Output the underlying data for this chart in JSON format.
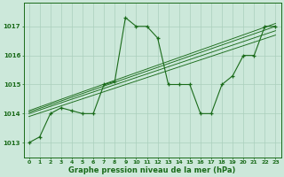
{
  "hours": [
    0,
    1,
    2,
    3,
    4,
    5,
    6,
    7,
    8,
    9,
    10,
    11,
    12,
    13,
    14,
    15,
    16,
    17,
    18,
    19,
    20,
    21,
    22,
    23
  ],
  "pressure": [
    1013.0,
    1013.2,
    1014.0,
    1014.2,
    1014.1,
    1014.0,
    1014.0,
    1015.0,
    1015.1,
    1017.3,
    1017.0,
    1017.0,
    1016.6,
    1015.0,
    1015.0,
    1015.0,
    1014.0,
    1014.0,
    1015.0,
    1015.3,
    1016.0,
    1016.0,
    1017.0,
    1017.0
  ],
  "trend_lines": [
    {
      "x0": 0,
      "y0": 1013.9,
      "x1": 23,
      "y1": 1016.7
    },
    {
      "x0": 0,
      "y0": 1014.0,
      "x1": 23,
      "y1": 1016.85
    },
    {
      "x0": 0,
      "y0": 1014.05,
      "x1": 23,
      "y1": 1017.0
    },
    {
      "x0": 0,
      "y0": 1014.1,
      "x1": 23,
      "y1": 1017.1
    }
  ],
  "line_color": "#1a6b1a",
  "background_color": "#cce8da",
  "grid_color": "#aacfbc",
  "text_color": "#1a6b1a",
  "xlabel": "Graphe pression niveau de la mer (hPa)",
  "ylim": [
    1012.5,
    1017.8
  ],
  "xlim": [
    -0.5,
    23.5
  ],
  "figwidth": 3.2,
  "figheight": 2.0,
  "dpi": 100
}
